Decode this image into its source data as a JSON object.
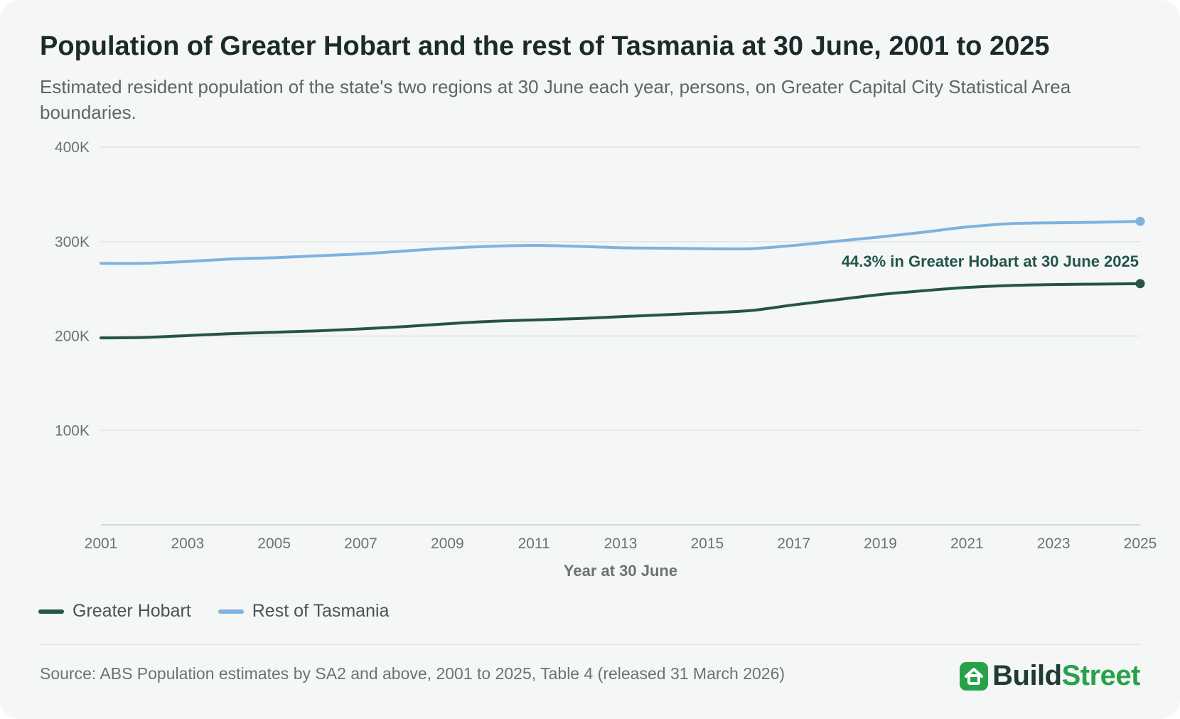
{
  "title": "Population of Greater Hobart and the rest of Tasmania at 30 June, 2001 to 2025",
  "subtitle": "Estimated resident population of the state's two regions at 30 June each year, persons, on Greater Capital City Statistical Area boundaries.",
  "source": "Source: ABS Population estimates by SA2 and above, 2001 to 2025, Table 4 (released 31 March 2026)",
  "brand": {
    "part1": "Build",
    "part2": "Street",
    "icon": "house-icon",
    "color_dark": "#1f3b35",
    "color_accent": "#27a24a"
  },
  "colors": {
    "hobart": "#24544b",
    "rest": "#7fb2de",
    "grid": "#e1e4e3",
    "axis": "#c9cecd"
  },
  "chart_data": {
    "type": "line",
    "title": "Population of Greater Hobart and the rest of Tasmania at 30 June, 2001 to 2025",
    "xlabel": "Year at 30 June",
    "ylabel": "",
    "xlim": [
      2001,
      2025
    ],
    "ylim": [
      0,
      400000
    ],
    "x_ticks": [
      2001,
      2003,
      2005,
      2007,
      2009,
      2011,
      2013,
      2015,
      2017,
      2019,
      2021,
      2023,
      2025
    ],
    "y_ticks": [
      {
        "value": 100000,
        "label": "100K"
      },
      {
        "value": 200000,
        "label": "200K"
      },
      {
        "value": 300000,
        "label": "300K"
      },
      {
        "value": 400000,
        "label": "400K"
      }
    ],
    "grid": true,
    "legend": "bottom-left",
    "x": [
      2001,
      2002,
      2003,
      2004,
      2005,
      2006,
      2007,
      2008,
      2009,
      2010,
      2011,
      2012,
      2013,
      2014,
      2015,
      2016,
      2017,
      2018,
      2019,
      2020,
      2021,
      2022,
      2023,
      2024,
      2025
    ],
    "series": [
      {
        "name": "Greater Hobart",
        "key": "hobart",
        "values": [
          198000,
          198500,
          200500,
          202500,
          204000,
          205500,
          207500,
          210000,
          213000,
          215500,
          217000,
          218500,
          220500,
          222500,
          224500,
          227000,
          233000,
          238500,
          244000,
          248000,
          251500,
          253500,
          254500,
          255000,
          255500
        ]
      },
      {
        "name": "Rest of Tasmania",
        "key": "rest",
        "values": [
          277000,
          277000,
          279000,
          281500,
          283000,
          285000,
          287000,
          290000,
          293000,
          295000,
          296000,
          295000,
          293500,
          293000,
          292500,
          292500,
          296000,
          300500,
          305000,
          310000,
          315500,
          319000,
          320000,
          320500,
          321500
        ]
      }
    ],
    "annotation": {
      "text": "44.3% in Greater Hobart at 30 June 2025",
      "x": 2025,
      "series": "Greater Hobart"
    }
  }
}
